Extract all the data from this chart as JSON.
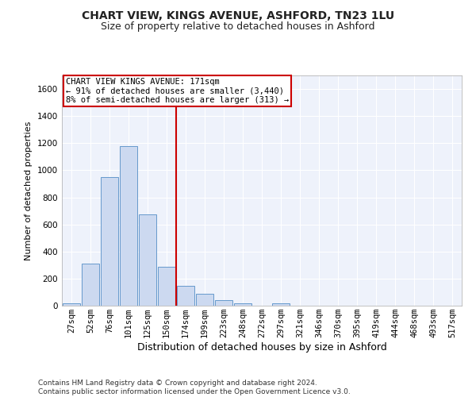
{
  "title": "CHART VIEW, KINGS AVENUE, ASHFORD, TN23 1LU",
  "subtitle": "Size of property relative to detached houses in Ashford",
  "xlabel": "Distribution of detached houses by size in Ashford",
  "ylabel": "Number of detached properties",
  "bar_color": "#ccd9f0",
  "bar_edge_color": "#6699cc",
  "background_color": "#eef2fb",
  "grid_color": "#ffffff",
  "categories": [
    "27sqm",
    "52sqm",
    "76sqm",
    "101sqm",
    "125sqm",
    "150sqm",
    "174sqm",
    "199sqm",
    "223sqm",
    "248sqm",
    "272sqm",
    "297sqm",
    "321sqm",
    "346sqm",
    "370sqm",
    "395sqm",
    "419sqm",
    "444sqm",
    "468sqm",
    "493sqm",
    "517sqm"
  ],
  "values": [
    18,
    310,
    950,
    1180,
    675,
    290,
    145,
    90,
    40,
    18,
    0,
    18,
    0,
    0,
    0,
    0,
    0,
    0,
    0,
    0,
    0
  ],
  "ylim": [
    0,
    1700
  ],
  "yticks": [
    0,
    200,
    400,
    600,
    800,
    1000,
    1200,
    1400,
    1600
  ],
  "vline_index": 6,
  "vline_color": "#cc0000",
  "annotation_text": "CHART VIEW KINGS AVENUE: 171sqm\n← 91% of detached houses are smaller (3,440)\n8% of semi-detached houses are larger (313) →",
  "annotation_box_color": "#cc0000",
  "footer": "Contains HM Land Registry data © Crown copyright and database right 2024.\nContains public sector information licensed under the Open Government Licence v3.0.",
  "title_fontsize": 10,
  "subtitle_fontsize": 9,
  "xlabel_fontsize": 9,
  "ylabel_fontsize": 8,
  "tick_fontsize": 7.5,
  "annotation_fontsize": 7.5,
  "footer_fontsize": 6.5
}
